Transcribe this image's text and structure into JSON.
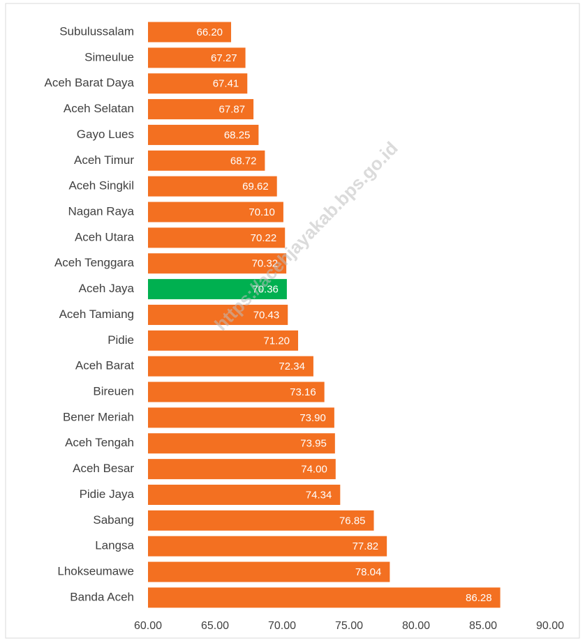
{
  "chart_data": {
    "type": "barh",
    "categories": [
      "Subulussalam",
      "Simeulue",
      "Aceh Barat Daya",
      "Aceh Selatan",
      "Gayo Lues",
      "Aceh Timur",
      "Aceh Singkil",
      "Nagan Raya",
      "Aceh Utara",
      "Aceh Tenggara",
      "Aceh Jaya",
      "Aceh Tamiang",
      "Pidie",
      "Aceh Barat",
      "Bireuen",
      "Bener Meriah",
      "Aceh Tengah",
      "Aceh Besar",
      "Pidie Jaya",
      "Sabang",
      "Langsa",
      "Lhokseumawe",
      "Banda Aceh"
    ],
    "values": [
      66.2,
      67.27,
      67.41,
      67.87,
      68.25,
      68.72,
      69.62,
      70.1,
      70.22,
      70.32,
      70.36,
      70.43,
      71.2,
      72.34,
      73.16,
      73.9,
      73.95,
      74.0,
      74.34,
      76.85,
      77.82,
      78.04,
      86.28
    ],
    "value_labels": [
      "66.20",
      "67.27",
      "67.41",
      "67.87",
      "68.25",
      "68.72",
      "69.62",
      "70.10",
      "70.22",
      "70.32",
      "70.36",
      "70.43",
      "71.20",
      "72.34",
      "73.16",
      "73.90",
      "73.95",
      "74.00",
      "74.34",
      "76.85",
      "77.82",
      "78.04",
      "86.28"
    ],
    "colors": [
      "#f37021",
      "#f37021",
      "#f37021",
      "#f37021",
      "#f37021",
      "#f37021",
      "#f37021",
      "#f37021",
      "#f37021",
      "#f37021",
      "#00b050",
      "#f37021",
      "#f37021",
      "#f37021",
      "#f37021",
      "#f37021",
      "#f37021",
      "#f37021",
      "#f37021",
      "#f37021",
      "#f37021",
      "#f37021",
      "#f37021"
    ],
    "xlim": [
      60,
      90
    ],
    "xticks": [
      {
        "value": 60,
        "label": "60.00"
      },
      {
        "value": 65,
        "label": "65.00"
      },
      {
        "value": 70,
        "label": "70.00"
      },
      {
        "value": 75,
        "label": "75.00"
      },
      {
        "value": 80,
        "label": "80.00"
      },
      {
        "value": 85,
        "label": "85.00"
      },
      {
        "value": 90,
        "label": "90.00"
      }
    ],
    "grid": false,
    "watermark": "https://acehjayakab.bps.go.id"
  }
}
